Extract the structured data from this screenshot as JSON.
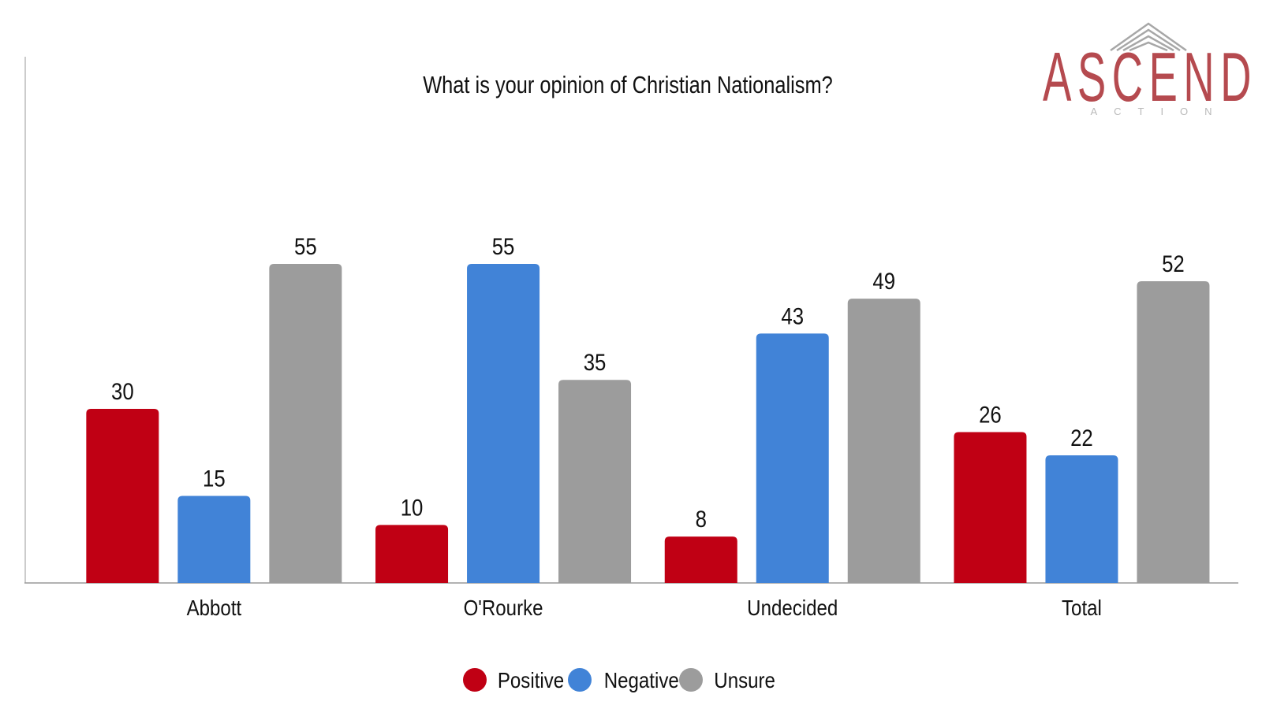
{
  "logo": {
    "name": "ASCEND",
    "sub": "ACTION"
  },
  "colors": {
    "positive": "#c00014",
    "negative": "#4183d7",
    "unsure": "#9c9c9c",
    "axis": "#999999",
    "text": "#111111"
  },
  "chart_data": {
    "type": "bar",
    "title": "What is your opinion of Christian Nationalism?",
    "categories": [
      "Abbott",
      "O'Rourke",
      "Undecided",
      "Total"
    ],
    "series": [
      {
        "name": "Positive",
        "values": [
          30,
          10,
          8,
          26
        ]
      },
      {
        "name": "Negative",
        "values": [
          15,
          55,
          43,
          22
        ]
      },
      {
        "name": "Unsure",
        "values": [
          55,
          35,
          49,
          52
        ]
      }
    ],
    "xlabel": "",
    "ylabel": "",
    "ylim": [
      0,
      85
    ],
    "grid": false,
    "legend_position": "bottom"
  }
}
